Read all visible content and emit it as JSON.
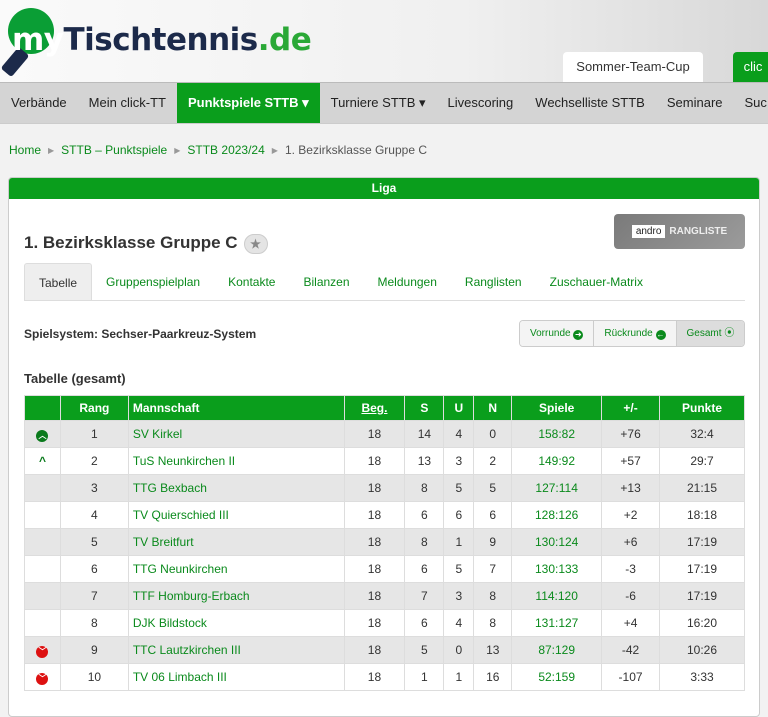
{
  "logo": {
    "my": "my",
    "t": "Tischtennis",
    "de": ".de"
  },
  "toptabs": [
    "Sommer-Team-Cup",
    "clic"
  ],
  "nav": [
    "Verbände",
    "Mein click-TT",
    "Punktspiele STTB ▾",
    "Turniere STTB ▾",
    "Livescoring",
    "Wechselliste STTB",
    "Seminare",
    "Suc"
  ],
  "breadcrumb": [
    "Home",
    "STTB – Punktspiele",
    "STTB 2023/24",
    "1. Bezirksklasse Gruppe C"
  ],
  "panel_title": "Liga",
  "league": "1. Bezirksklasse Gruppe C",
  "andro": {
    "brand": "andro",
    "label": "RANGLISTE"
  },
  "tabs": [
    "Tabelle",
    "Gruppenspielplan",
    "Kontakte",
    "Bilanzen",
    "Meldungen",
    "Ranglisten",
    "Zuschauer-Matrix"
  ],
  "system": "Spielsystem: Sechser-Paarkreuz-System",
  "segments": [
    "Vorrunde",
    "Rückrunde",
    "Gesamt"
  ],
  "subtitle": "Tabelle (gesamt)",
  "columns": [
    "",
    "Rang",
    "Mannschaft",
    "Beg.",
    "S",
    "U",
    "N",
    "Spiele",
    "+/-",
    "Punkte"
  ],
  "rows": [
    {
      "icon": "promotion-circle",
      "rang": "1",
      "team": "SV Kirkel",
      "beg": "18",
      "s": "14",
      "u": "4",
      "n": "0",
      "spiele": "158:82",
      "diff": "+76",
      "punkte": "32:4"
    },
    {
      "icon": "relegation-up",
      "rang": "2",
      "team": "TuS Neunkirchen II",
      "beg": "18",
      "s": "13",
      "u": "3",
      "n": "2",
      "spiele": "149:92",
      "diff": "+57",
      "punkte": "29:7"
    },
    {
      "icon": "",
      "rang": "3",
      "team": "TTG Bexbach",
      "beg": "18",
      "s": "8",
      "u": "5",
      "n": "5",
      "spiele": "127:114",
      "diff": "+13",
      "punkte": "21:15"
    },
    {
      "icon": "",
      "rang": "4",
      "team": "TV Quierschied III",
      "beg": "18",
      "s": "6",
      "u": "6",
      "n": "6",
      "spiele": "128:126",
      "diff": "+2",
      "punkte": "18:18"
    },
    {
      "icon": "",
      "rang": "5",
      "team": "TV Breitfurt",
      "beg": "18",
      "s": "8",
      "u": "1",
      "n": "9",
      "spiele": "130:124",
      "diff": "+6",
      "punkte": "17:19"
    },
    {
      "icon": "",
      "rang": "6",
      "team": "TTG Neunkirchen",
      "beg": "18",
      "s": "6",
      "u": "5",
      "n": "7",
      "spiele": "130:133",
      "diff": "-3",
      "punkte": "17:19"
    },
    {
      "icon": "",
      "rang": "7",
      "team": "TTF Homburg-Erbach",
      "beg": "18",
      "s": "7",
      "u": "3",
      "n": "8",
      "spiele": "114:120",
      "diff": "-6",
      "punkte": "17:19"
    },
    {
      "icon": "",
      "rang": "8",
      "team": "DJK Bildstock",
      "beg": "18",
      "s": "6",
      "u": "4",
      "n": "8",
      "spiele": "131:127",
      "diff": "+4",
      "punkte": "16:20"
    },
    {
      "icon": "relegation-down",
      "rang": "9",
      "team": "TTC Lautzkirchen III",
      "beg": "18",
      "s": "5",
      "u": "0",
      "n": "13",
      "spiele": "87:129",
      "diff": "-42",
      "punkte": "10:26"
    },
    {
      "icon": "relegation-down",
      "rang": "10",
      "team": "TV 06 Limbach III",
      "beg": "18",
      "s": "1",
      "u": "1",
      "n": "16",
      "spiele": "52:159",
      "diff": "-107",
      "punkte": "3:33"
    }
  ]
}
